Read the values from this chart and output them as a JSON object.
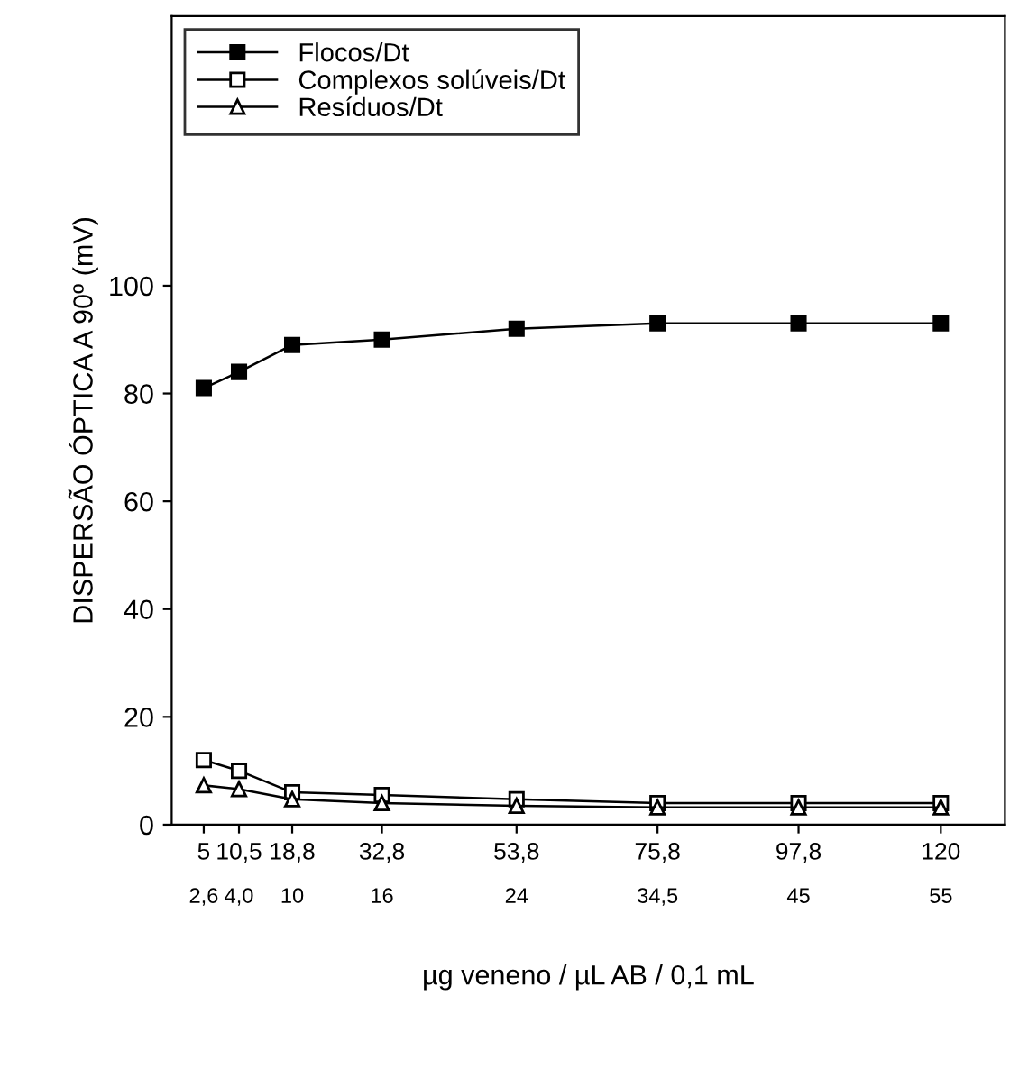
{
  "chart_data": {
    "type": "line",
    "xlabel": "µg veneno / µL AB / 0,1 mL",
    "ylabel": "DISPERSÃO ÓPTICA A 90º (mV)",
    "x": [
      5,
      10.5,
      18.8,
      32.8,
      53.8,
      75.8,
      97.8,
      120
    ],
    "series": [
      {
        "name": "Flocos/Dt",
        "color": "#000000",
        "marker": "square_filled",
        "values": [
          81,
          84,
          89,
          90,
          92,
          93,
          93,
          93
        ]
      },
      {
        "name": "Complexos solúveis/Dt",
        "color": "#000000",
        "marker": "square",
        "values": [
          12,
          10,
          6,
          5.5,
          4.7,
          4,
          4,
          4
        ]
      },
      {
        "name": "Resíduos/Dt",
        "color": "#000000",
        "marker": "triangle",
        "values": [
          7.3,
          6.6,
          4.7,
          4,
          3.5,
          3.2,
          3.2,
          3.2
        ]
      }
    ],
    "xlim": [
      0,
      130
    ],
    "ylim": [
      0,
      150
    ],
    "xticks": [
      5,
      {
        "value": 10.5,
        "label": "10,5"
      },
      {
        "value": 18.8,
        "label": "18,8"
      },
      {
        "value": 32.8,
        "label": "32,8"
      },
      {
        "value": 53.8,
        "label": "53,8"
      },
      {
        "value": 75.8,
        "label": "75,8"
      },
      {
        "value": 97.8,
        "label": "97,8"
      },
      120
    ],
    "annotations": [
      "2,6",
      "4,0",
      "10",
      "16",
      "24",
      "34,5",
      "45",
      "55"
    ],
    "yticks": [
      0,
      20,
      40,
      60,
      80,
      100
    ],
    "legend": "top left",
    "grid": false,
    "line_style": "solid"
  }
}
